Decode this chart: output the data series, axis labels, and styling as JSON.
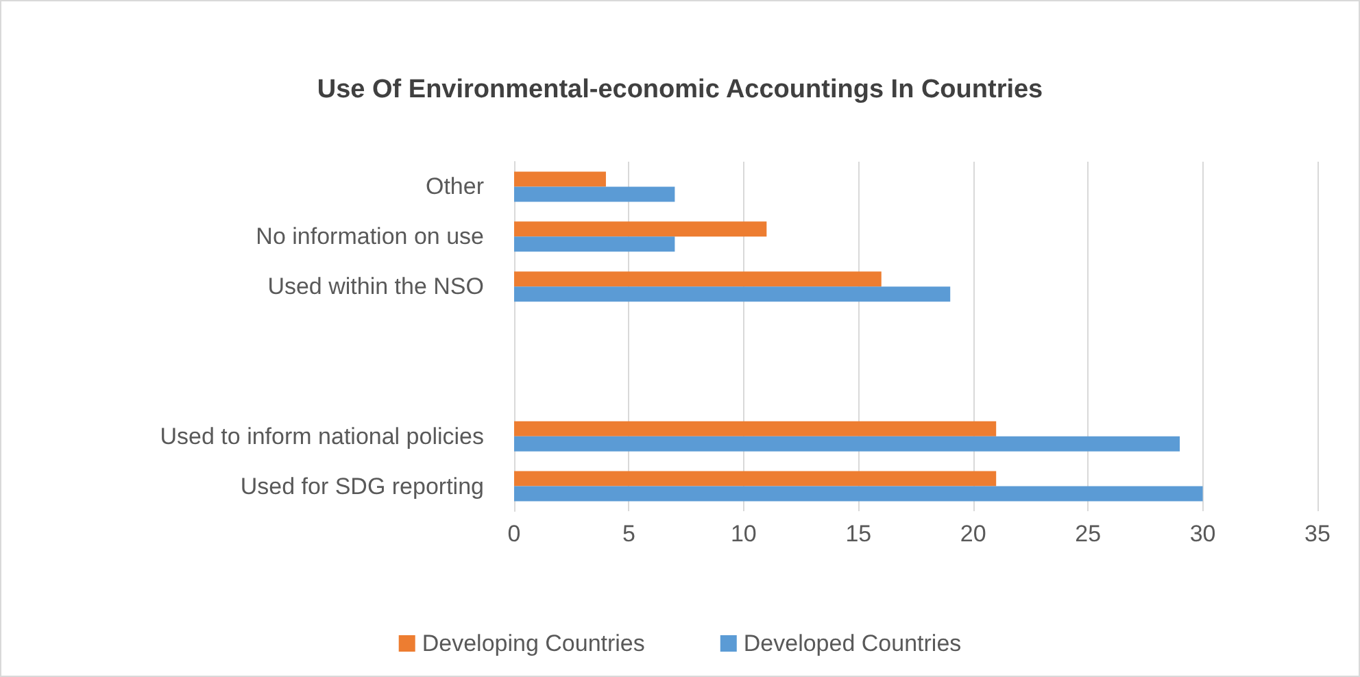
{
  "chart_data": {
    "type": "bar",
    "orientation": "horizontal",
    "title": "Use Of Environmental-economic Accountings In Countries",
    "categories": [
      "Other",
      "No information on use",
      "Used within the NSO",
      null,
      null,
      "Used to inform national policies",
      "Used for SDG reporting"
    ],
    "series": [
      {
        "name": "Developing Countries",
        "color": "#ed7d31",
        "values": [
          4,
          11,
          16,
          null,
          null,
          21,
          21
        ]
      },
      {
        "name": "Developed Countries",
        "color": "#5b9bd5",
        "values": [
          7,
          7,
          19,
          null,
          null,
          29,
          30
        ]
      }
    ],
    "xlim": [
      0,
      35
    ],
    "xticks": [
      0,
      5,
      10,
      15,
      20,
      25,
      30,
      35
    ],
    "grid": "x",
    "legend": "bottom"
  }
}
